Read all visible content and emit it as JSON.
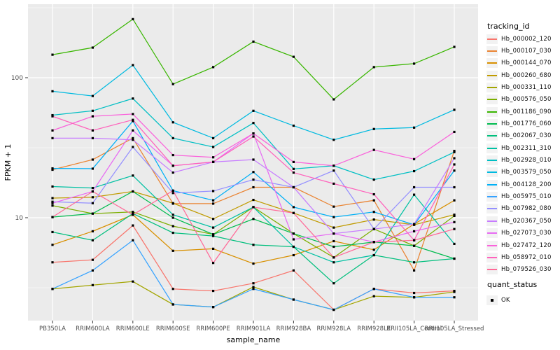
{
  "figure": {
    "x_axis_title": "sample_name",
    "y_axis_title": "FPKM + 1",
    "legend_color_title": "tracking_id",
    "legend_shape_title": "quant_status",
    "quant_ok_label": "OK"
  },
  "chart_data": {
    "type": "line",
    "title": "",
    "xlabel": "sample_name",
    "ylabel": "FPKM + 1",
    "y_scale": "log10",
    "y_ticks": [
      100,
      10
    ],
    "ylim": [
      1.9,
      320
    ],
    "grid": true,
    "legend_position": "right",
    "panel_background": "#EBEBEB",
    "grid_major_color": "#FFFFFF",
    "grid_minor_color": "#FFFFFF",
    "tick_color": "#333333",
    "tick_label_color": "#4D4D4D",
    "point_shape": "square",
    "point_color": "#000000",
    "legend_key_fill": "#F2F2F2",
    "quant_status": {
      "title": "quant_status",
      "items": [
        "OK"
      ]
    },
    "categories": [
      "PB350LA",
      "RRIM600LA",
      "RRIM600LE",
      "RRIM600SE",
      "RRIM600PE",
      "RRIM901LA",
      "RRIM928BA",
      "RRIM928LA",
      "RRIM928LE",
      "RRII105LA_Control",
      "RRII105LA_Stressed"
    ],
    "series": [
      {
        "name": "Hb_000002_120",
        "color": "#F8766D",
        "values": [
          4.8,
          5.0,
          8.8,
          3.1,
          3.0,
          3.4,
          4.2,
          2.2,
          3.1,
          2.9,
          3.0
        ]
      },
      {
        "name": "Hb_000107_030",
        "color": "#EA8331",
        "values": [
          22,
          26,
          37,
          12.6,
          12.6,
          16.5,
          16.5,
          12.0,
          13.3,
          4.2,
          30
        ]
      },
      {
        "name": "Hb_000144_070",
        "color": "#D89000",
        "values": [
          6.4,
          8.0,
          10.5,
          5.8,
          6.0,
          4.7,
          5.4,
          6.8,
          5.9,
          9.0,
          13.3
        ]
      },
      {
        "name": "Hb_000260_680",
        "color": "#C09B00",
        "values": [
          13.8,
          14.0,
          15.4,
          12.7,
          9.8,
          13.4,
          10.8,
          8.5,
          9.7,
          8.9,
          10.5
        ]
      },
      {
        "name": "Hb_000331_110",
        "color": "#A3A500",
        "values": [
          3.1,
          3.3,
          3.5,
          2.4,
          2.3,
          3.2,
          2.6,
          2.2,
          2.75,
          2.7,
          2.95
        ]
      },
      {
        "name": "Hb_000576_050",
        "color": "#7CAE00",
        "values": [
          12.2,
          10.7,
          11.0,
          8.7,
          7.6,
          11.9,
          7.7,
          5.2,
          8.3,
          6.3,
          10.3
        ]
      },
      {
        "name": "Hb_001186_090",
        "color": "#39B600",
        "values": [
          146,
          164,
          262,
          90,
          119,
          181,
          141,
          70,
          119,
          126,
          166
        ]
      },
      {
        "name": "Hb_001776_060",
        "color": "#00BB4E",
        "values": [
          10.1,
          10.7,
          15.4,
          10.0,
          7.6,
          9.8,
          7.7,
          6.2,
          6.7,
          6.3,
          5.1
        ]
      },
      {
        "name": "Hb_002067_030",
        "color": "#00BF7D",
        "values": [
          7.9,
          6.9,
          10.7,
          7.8,
          7.4,
          6.4,
          6.2,
          3.4,
          5.4,
          4.8,
          5.1
        ]
      },
      {
        "name": "Hb_002311_310",
        "color": "#00C1A3",
        "values": [
          16.7,
          16.3,
          20.0,
          10.5,
          8.5,
          11.9,
          6.2,
          4.8,
          5.4,
          14.6,
          6.5
        ]
      },
      {
        "name": "Hb_002928_010",
        "color": "#00BFC4",
        "values": [
          54,
          58,
          71,
          37,
          32,
          47.5,
          22.3,
          23.5,
          18.7,
          21.5,
          29.4
        ]
      },
      {
        "name": "Hb_003579_050",
        "color": "#00BAE0",
        "values": [
          80,
          74,
          123,
          48,
          37,
          58,
          45.4,
          36,
          43,
          44,
          59
        ]
      },
      {
        "name": "Hb_004128_200",
        "color": "#00B0F6",
        "values": [
          22.5,
          22.4,
          49,
          15.6,
          13.3,
          21.2,
          11.9,
          10.1,
          11.0,
          8.9,
          21.7
        ]
      },
      {
        "name": "Hb_005975_010",
        "color": "#35A2FF",
        "values": [
          3.1,
          4.2,
          6.9,
          2.4,
          2.3,
          3.1,
          2.6,
          2.2,
          3.1,
          2.7,
          2.7
        ]
      },
      {
        "name": "Hb_007982_080",
        "color": "#9590FF",
        "values": [
          13.0,
          12.7,
          32,
          15.0,
          15.5,
          18.7,
          16.5,
          21.7,
          8.3,
          16.5,
          16.5
        ]
      },
      {
        "name": "Hb_020367_050",
        "color": "#C77CFF",
        "values": [
          37,
          37,
          36,
          21,
          25,
          26,
          16.5,
          7.7,
          8.3,
          9.0,
          26.6
        ]
      },
      {
        "name": "Hb_027073_030",
        "color": "#E76BF3",
        "values": [
          12.7,
          15.4,
          42,
          23.5,
          25,
          40,
          7.0,
          7.7,
          6.7,
          8.0,
          9.3
        ]
      },
      {
        "name": "Hb_027472_120",
        "color": "#FA62DB",
        "values": [
          42,
          53,
          55,
          28,
          27,
          40,
          25,
          23.5,
          30.5,
          26.2,
          41
        ]
      },
      {
        "name": "Hb_058972_010",
        "color": "#FF62BC",
        "values": [
          53,
          42,
          50,
          23.5,
          25,
          38,
          21,
          17.5,
          14.7,
          6.9,
          24
        ]
      },
      {
        "name": "Hb_079526_030",
        "color": "#FF6A98",
        "values": [
          10.1,
          15.4,
          10.5,
          15.6,
          4.75,
          11.9,
          10.8,
          5.2,
          6.7,
          6.9,
          8.3
        ]
      }
    ]
  }
}
